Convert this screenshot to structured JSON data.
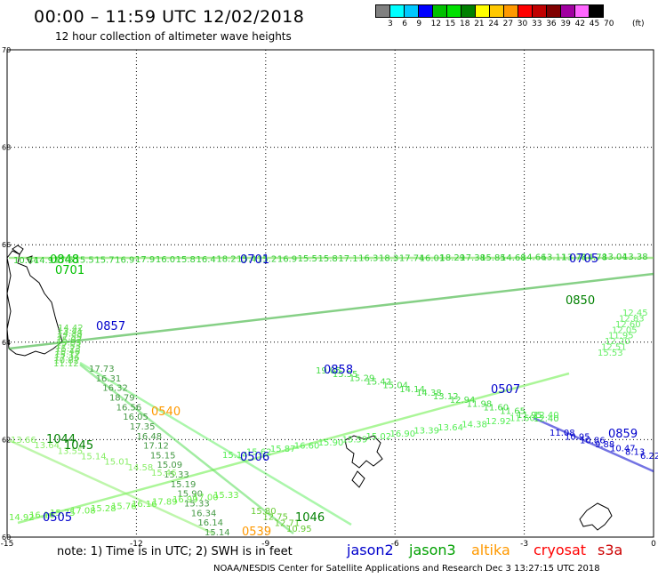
{
  "header": {
    "title": "00:00 – 11:59 UTC 12/02/2018",
    "subtitle": "12 hour collection of altimeter wave heights"
  },
  "color_scale": {
    "unit": "(ft)",
    "swatches": [
      "#808080",
      "#00ffff",
      "#00c8ff",
      "#0000ff",
      "#00c000",
      "#00e000",
      "#008000",
      "#ffff00",
      "#ffc800",
      "#ff9900",
      "#ff0000",
      "#c00000",
      "#800000",
      "#a000a0",
      "#ff66ff",
      "#000000"
    ],
    "labels": [
      "3",
      "6",
      "9",
      "12",
      "15",
      "18",
      "21",
      "24",
      "27",
      "30",
      "33",
      "36",
      "39",
      "42",
      "45",
      "70"
    ]
  },
  "axes": {
    "lon_ticks": [
      "-15",
      "-12",
      "-9",
      "-6",
      "-3",
      "0"
    ],
    "lat_ticks": [
      "60",
      "62",
      "64",
      "66",
      "68",
      "70"
    ]
  },
  "tracks": [
    {
      "sat": "jason3",
      "color": "#00c000",
      "labels": [
        "0848",
        "0701"
      ]
    },
    {
      "sat": "jason2",
      "color": "#0000cc",
      "labels": [
        "0857",
        "0858",
        "0507",
        "0506",
        "0505",
        "0859",
        "0701",
        "0705"
      ]
    },
    {
      "sat": "jason3",
      "color": "#008000",
      "labels": [
        "0850",
        "1044",
        "1045",
        "1046"
      ]
    },
    {
      "sat": "altika",
      "color": "#ff9900",
      "labels": [
        "0540",
        "0539"
      ]
    }
  ],
  "wave_labels": {
    "top_row": [
      "10.84",
      "14.9",
      "17.5",
      "15.5",
      "15.7",
      "16.9",
      "17.9",
      "16.0",
      "15.8",
      "16.4",
      "18.2",
      "15.4",
      "15.2",
      "16.9",
      "15.5",
      "15.8",
      "17.1",
      "16.3",
      "18.3",
      "17.74",
      "16.01",
      "18.29",
      "17.38",
      "15.85",
      "14.68",
      "14.66",
      "13.11",
      "13.78",
      "14.78",
      "13.04",
      "13.38"
    ],
    "track_0858": [
      "17.73",
      "16.31",
      "16.32",
      "18.79",
      "16.56",
      "16.05",
      "17.35",
      "16.48",
      "17.12",
      "15.15",
      "15.09",
      "15.33",
      "15.19",
      "15.90",
      "15.33",
      "16.34",
      "16.14",
      "15.14"
    ],
    "track_0507": [
      "19.05",
      "15.55",
      "15.29",
      "15.42",
      "15.04",
      "14.14",
      "14.38",
      "13.12",
      "12.94",
      "11.98",
      "11.60",
      "11.65",
      "11.95",
      "12.40"
    ],
    "track_0506": [
      "15.14",
      "15.62",
      "15.87",
      "16.60",
      "15.90",
      "15.59",
      "15.02",
      "16.90",
      "13.39",
      "13.64",
      "14.38",
      "12.92",
      "11.60",
      "12.40"
    ],
    "track_0859": [
      "11.08",
      "10.95",
      "10.86",
      "9.88",
      "10.47",
      "8.13",
      "6.22"
    ],
    "track_0505": [
      "14.92",
      "16.16",
      "15.75",
      "17.08",
      "15.28",
      "15.76",
      "16.16",
      "17.89",
      "16.99",
      "17.00",
      "15.33"
    ],
    "track_1045": [
      "13.66",
      "13.64",
      "13.55",
      "15.14",
      "15.01",
      "14.58",
      "15.46"
    ],
    "track_1046": [
      "15.80",
      "12.75",
      "12.71",
      "10.95"
    ],
    "right_side": [
      "15.53",
      "12.51",
      "12.20",
      "11.95",
      "12.05",
      "12.60",
      "12.83",
      "12.45"
    ],
    "upper_left": [
      "14.42",
      "13.41",
      "14.38",
      "17.59",
      "15.02",
      "15.33",
      "17.53",
      "15.23",
      "15.46",
      "15.17",
      "17.36",
      "10.82",
      "11.12"
    ]
  },
  "footer": {
    "note": "note: 1) Time is in UTC; 2) SWH is in feet",
    "credit": "NOAA/NESDIS Center for Satellite Applications and Research   Dec  3 13:27:15 UTC 2018",
    "satellites": [
      {
        "name": "jason2",
        "color": "#0000cc"
      },
      {
        "name": "jason3",
        "color": "#00a000"
      },
      {
        "name": "altika",
        "color": "#ff9900"
      },
      {
        "name": "cryosat",
        "color": "#ff0000"
      },
      {
        "name": "s3a",
        "color": "#cc0000"
      }
    ]
  }
}
